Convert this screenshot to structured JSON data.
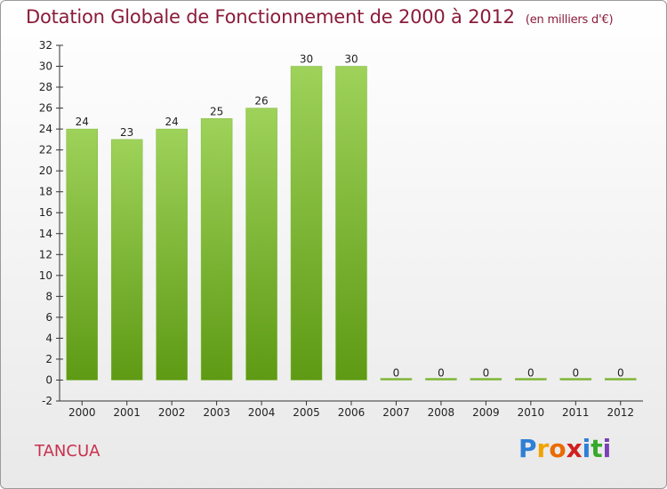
{
  "title": "Dotation Globale de Fonctionnement de 2000 à 2012",
  "unit": "(en milliers d'€)",
  "commune": "TANCUA",
  "logo": {
    "letters": [
      "P",
      "r",
      "o",
      "x",
      "i",
      "t",
      "i"
    ],
    "colors": [
      "#2e7fd6",
      "#f2a300",
      "#ea6b00",
      "#d11f1f",
      "#2e7fd6",
      "#36a92c",
      "#7a3fb5"
    ]
  },
  "colors": {
    "bar_top": "#9ed25a",
    "bar_bottom": "#5e9a14",
    "title": "#8a1c3a",
    "commune": "#c8314d"
  },
  "chart_data": {
    "type": "bar",
    "categories": [
      "2000",
      "2001",
      "2002",
      "2003",
      "2004",
      "2005",
      "2006",
      "2007",
      "2008",
      "2009",
      "2010",
      "2011",
      "2012"
    ],
    "values": [
      24,
      23,
      24,
      25,
      26,
      30,
      30,
      0,
      0,
      0,
      0,
      0,
      0
    ],
    "ylim": [
      -2,
      32
    ],
    "yticks": [
      -2,
      0,
      2,
      4,
      6,
      8,
      10,
      12,
      14,
      16,
      18,
      20,
      22,
      24,
      26,
      28,
      30,
      32
    ],
    "grid": false,
    "title": "Dotation Globale de Fonctionnement de 2000 à 2012",
    "xlabel": "",
    "ylabel": ""
  }
}
